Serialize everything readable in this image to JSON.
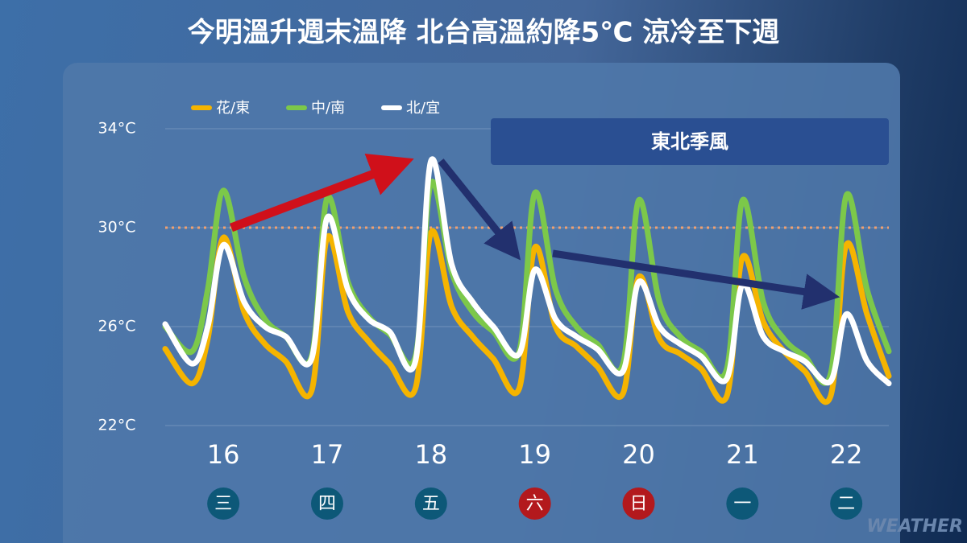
{
  "chart_data": {
    "type": "line",
    "title": "今明溫升週末溫降 北台高溫約降5℃ 涼冷至下週",
    "annotation": "東北季風",
    "watermark": "WEATHER",
    "x": [
      15.44,
      15.7,
      15.85,
      16,
      16.2,
      16.4,
      16.6,
      16.85,
      17,
      17.2,
      17.4,
      17.6,
      17.85,
      18,
      18.2,
      18.4,
      18.6,
      18.85,
      19,
      19.2,
      19.4,
      19.6,
      19.85,
      20,
      20.2,
      20.4,
      20.6,
      20.85,
      21,
      21.2,
      21.4,
      21.6,
      21.85,
      22,
      22.2,
      22.41
    ],
    "series": [
      {
        "name": "花/東",
        "color": "#f5b400",
        "values": [
          25.1,
          23.7,
          25.5,
          29.6,
          26.6,
          25.3,
          24.6,
          23.4,
          29.6,
          26.6,
          25.4,
          24.5,
          23.5,
          29.8,
          26.8,
          25.6,
          24.7,
          23.5,
          29.2,
          26.0,
          25.2,
          24.4,
          23.3,
          28.0,
          25.5,
          24.9,
          24.3,
          23.2,
          28.8,
          26.2,
          25.0,
          24.2,
          23.2,
          29.3,
          26.5,
          24.0
        ]
      },
      {
        "name": "中/南",
        "color": "#7cc84a",
        "values": [
          26.0,
          25.0,
          27.5,
          31.5,
          28.0,
          26.3,
          25.6,
          24.8,
          31.2,
          27.8,
          26.4,
          25.7,
          24.8,
          31.8,
          28.2,
          26.6,
          25.8,
          25.0,
          31.4,
          27.5,
          26.0,
          25.3,
          24.5,
          31.1,
          27.0,
          25.6,
          25.0,
          24.3,
          31.1,
          27.0,
          25.5,
          24.8,
          24.1,
          31.3,
          27.5,
          25.0
        ]
      },
      {
        "name": "北/宜",
        "color": "#ffffff",
        "values": [
          26.1,
          24.5,
          26.0,
          29.3,
          27.0,
          26.0,
          25.6,
          24.7,
          30.4,
          27.5,
          26.3,
          25.8,
          24.6,
          32.7,
          28.5,
          27.0,
          26.0,
          24.9,
          28.3,
          26.3,
          25.6,
          25.1,
          24.2,
          27.8,
          26.0,
          25.3,
          24.8,
          23.9,
          27.7,
          25.6,
          25.0,
          24.6,
          23.8,
          26.5,
          24.6,
          23.7
        ]
      }
    ],
    "xlim": [
      15.44,
      22.41
    ],
    "xticks": [
      16,
      17,
      18,
      19,
      20,
      21,
      22
    ],
    "weekdays": [
      "三",
      "四",
      "五",
      "六",
      "日",
      "一",
      "二"
    ],
    "weekday_colors": [
      "#0d5878",
      "#0d5878",
      "#0d5878",
      "#b3191d",
      "#b3191d",
      "#0d5878",
      "#0d5878"
    ],
    "ylim": [
      22,
      34
    ],
    "yticks": [
      {
        "value": 22,
        "label": "22°C"
      },
      {
        "value": 26,
        "label": "26°C"
      },
      {
        "value": 30,
        "label": "30°C"
      },
      {
        "value": 34,
        "label": "34°C"
      }
    ],
    "reference_line": 30,
    "reference_color": "#f0a070",
    "grid": true
  }
}
